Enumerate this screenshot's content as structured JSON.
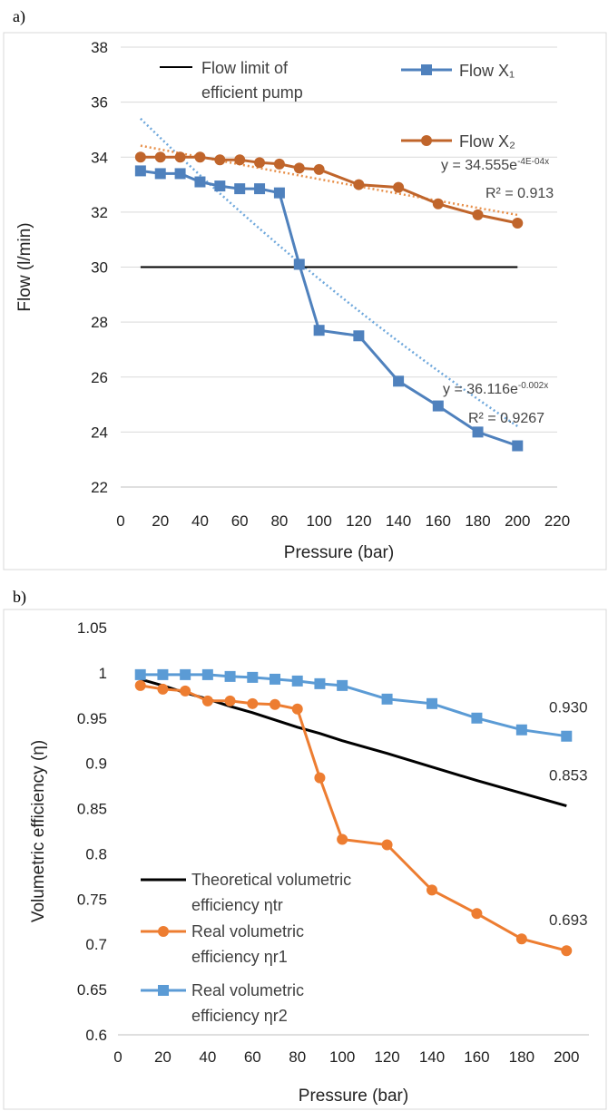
{
  "figure": {
    "panel_a_label": "a)",
    "panel_b_label": "b)"
  },
  "chart_data": [
    {
      "type": "line",
      "panel": "a)",
      "xlabel": "Pressure (bar)",
      "ylabel": "Flow (l/min)",
      "xlim": [
        0,
        220
      ],
      "ylim": [
        22,
        38
      ],
      "xticks": [
        "0",
        "20",
        "40",
        "60",
        "80",
        "100",
        "120",
        "140",
        "160",
        "180",
        "200",
        "220"
      ],
      "yticks": [
        "22",
        "24",
        "26",
        "28",
        "30",
        "32",
        "34",
        "36",
        "38"
      ],
      "grid": "horizontal",
      "legend_position": "top",
      "series": [
        {
          "name": "Flow limit of efficient pump",
          "color": "#000000",
          "marker": "none",
          "x": [
            10,
            200
          ],
          "y": [
            30,
            30
          ]
        },
        {
          "name": "Flow X₁",
          "color": "#4f81bd",
          "marker": "square",
          "x": [
            10,
            20,
            30,
            40,
            50,
            60,
            70,
            80,
            90,
            100,
            120,
            140,
            160,
            180,
            200
          ],
          "y": [
            33.5,
            33.4,
            33.4,
            33.1,
            32.95,
            32.85,
            32.85,
            32.7,
            30.1,
            27.7,
            27.5,
            25.85,
            24.95,
            24.0,
            23.5
          ]
        },
        {
          "name": "Flow X₂",
          "color": "#c0652b",
          "marker": "circle",
          "x": [
            10,
            20,
            30,
            40,
            50,
            60,
            70,
            80,
            90,
            100,
            120,
            140,
            160,
            180,
            200
          ],
          "y": [
            34.0,
            34.0,
            34.0,
            34.0,
            33.9,
            33.9,
            33.8,
            33.75,
            33.6,
            33.55,
            33.0,
            32.9,
            32.3,
            31.9,
            31.6
          ]
        }
      ],
      "trendlines": [
        {
          "of": "Flow X₁",
          "kind": "exponential",
          "equation": "y = 36.116e",
          "exponent": "-0.002x",
          "r2": "R² = 0.9267",
          "a": 36.116,
          "b": -0.002,
          "x_range": [
            10,
            200
          ],
          "color": "#6fa8dc"
        },
        {
          "of": "Flow X₂",
          "kind": "exponential",
          "equation": "y = 34.555e",
          "exponent": "-4E-04x",
          "r2": "R² = 0.913",
          "a": 34.555,
          "b": -0.0004,
          "x_range": [
            10,
            200
          ],
          "color": "#e8904a"
        }
      ]
    },
    {
      "type": "line",
      "panel": "b)",
      "xlabel": "Pressure (bar)",
      "ylabel": "Volumetric efficiency (η)",
      "xlim": [
        0,
        210
      ],
      "ylim": [
        0.6,
        1.05
      ],
      "xticks": [
        "0",
        "20",
        "40",
        "60",
        "80",
        "100",
        "120",
        "140",
        "160",
        "180",
        "200"
      ],
      "yticks": [
        "0.6",
        "0.65",
        "0.7",
        "0.75",
        "0.8",
        "0.85",
        "0.9",
        "0.95",
        "1",
        "1.05"
      ],
      "grid": "none",
      "legend_position": "bottom-left",
      "series": [
        {
          "name": "Theoretical volumetric efficiency ηtr",
          "legend_lines": [
            "Theoretical volumetric",
            "efficiency ηtr"
          ],
          "color": "#000000",
          "marker": "none",
          "x": [
            10,
            20,
            30,
            40,
            50,
            60,
            70,
            80,
            90,
            100,
            120,
            140,
            160,
            180,
            200
          ],
          "y": [
            0.993,
            0.986,
            0.978,
            0.971,
            0.963,
            0.956,
            0.948,
            0.94,
            0.933,
            0.925,
            0.911,
            0.896,
            0.881,
            0.867,
            0.853
          ],
          "end_label": "0.853"
        },
        {
          "name": "Real volumetric efficiency ηr1",
          "legend_lines": [
            "Real volumetric",
            "efficiency ηr1"
          ],
          "color": "#ed7d31",
          "marker": "circle",
          "x": [
            10,
            20,
            30,
            40,
            50,
            60,
            70,
            80,
            90,
            100,
            120,
            140,
            160,
            180,
            200
          ],
          "y": [
            0.986,
            0.982,
            0.98,
            0.969,
            0.969,
            0.966,
            0.965,
            0.96,
            0.884,
            0.816,
            0.81,
            0.76,
            0.734,
            0.706,
            0.693
          ],
          "end_label": "0.693"
        },
        {
          "name": "Real volumetric efficiency ηr2",
          "legend_lines": [
            "Real volumetric",
            "efficiency ηr2"
          ],
          "color": "#5b9bd5",
          "marker": "square",
          "x": [
            10,
            20,
            30,
            40,
            50,
            60,
            70,
            80,
            90,
            100,
            120,
            140,
            160,
            180,
            200
          ],
          "y": [
            0.998,
            0.998,
            0.998,
            0.998,
            0.996,
            0.995,
            0.993,
            0.991,
            0.988,
            0.986,
            0.971,
            0.966,
            0.95,
            0.937,
            0.93
          ],
          "end_label": "0.930"
        }
      ]
    }
  ]
}
